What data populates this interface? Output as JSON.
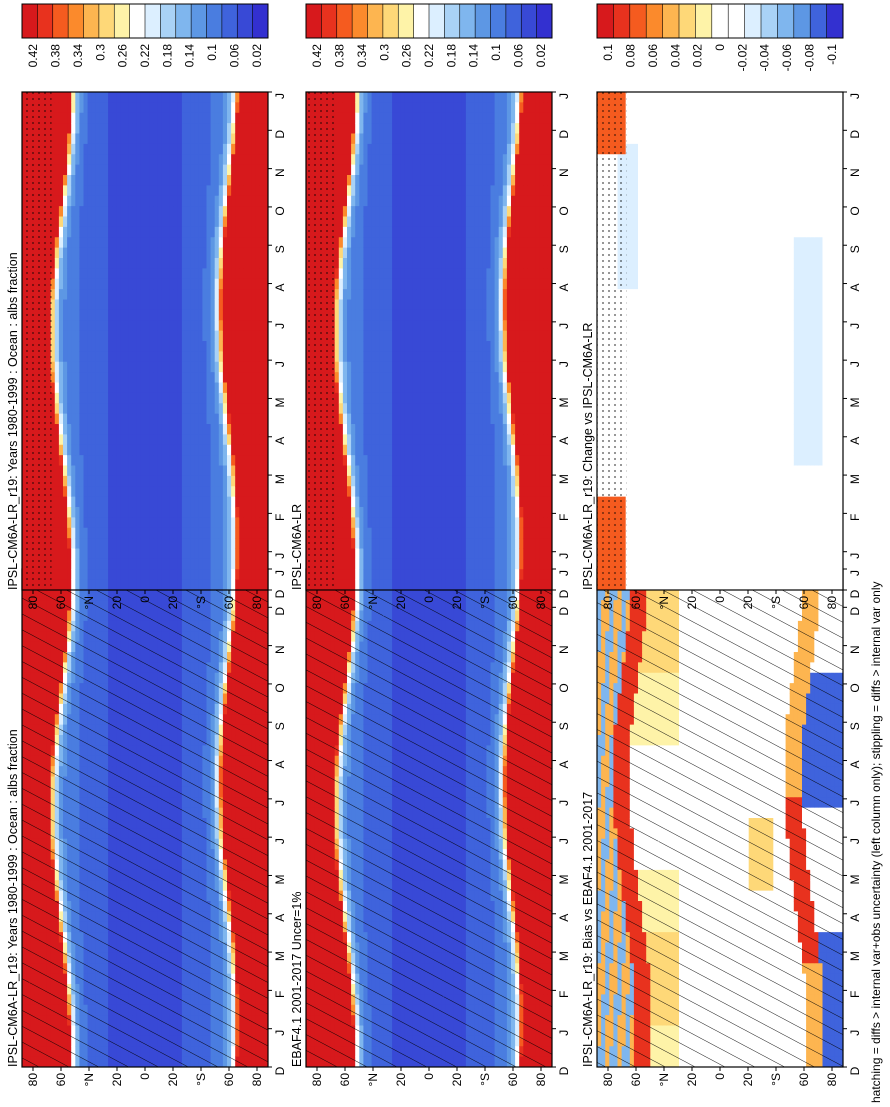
{
  "footnote": "hatching = diffs > internal var+obs uncertainty (left column only); stippling = diffs > internal var only",
  "month_ticks": [
    "D",
    "J",
    "F",
    "M",
    "A",
    "M",
    "J",
    "J",
    "A",
    "S",
    "O",
    "N",
    "D",
    "J"
  ],
  "lat_ticks": [
    "80",
    "60",
    "°N",
    "20",
    "0",
    "20",
    "°S",
    "60",
    "80"
  ],
  "colormaps": {
    "albedo": [
      "#d7191c",
      "#e8321e",
      "#f55b1f",
      "#fb8a2c",
      "#fdb550",
      "#fed878",
      "#fef3a8",
      "#ffffff",
      "#dcefff",
      "#a9d2f6",
      "#7fb6ee",
      "#5d97e4",
      "#4a7de0",
      "#3f63dc",
      "#3849d6",
      "#3330d0"
    ],
    "diff": [
      "#d7191c",
      "#e8321e",
      "#f55b1f",
      "#fb8a2c",
      "#fdb550",
      "#fed878",
      "#fef3a8",
      "#ffffff",
      "#ffffff",
      "#dcefff",
      "#a9d2f6",
      "#7fb6ee",
      "#5d97e4",
      "#3f63dc",
      "#3330d0"
    ]
  },
  "panels": [
    {
      "title": "IPSL-CM6A-LR_r19: Years 1980-1999 : Ocean : albs fraction",
      "kind": "albedo",
      "hatch": true,
      "stipple": false,
      "cbar_labels": [
        "0.42",
        "0.38",
        "0.34",
        "0.3",
        "0.26",
        "0.22",
        "0.18",
        "0.14",
        "0.1",
        "0.06",
        "0.02"
      ]
    },
    {
      "title": "IPSL-CM6A-LR_r19: Years 1980-1999 : Ocean : albs fraction",
      "kind": "albedo",
      "hatch": false,
      "stipple": true,
      "cbar_labels": [
        "0.42",
        "0.38",
        "0.34",
        "0.3",
        "0.26",
        "0.22",
        "0.18",
        "0.14",
        "0.1",
        "0.06",
        "0.02"
      ]
    },
    {
      "title": "EBAF4.1 2001-2017 Uncer=1%",
      "kind": "albedo",
      "hatch": true,
      "stipple": false,
      "cbar_labels": [
        "0.42",
        "0.38",
        "0.34",
        "0.3",
        "0.26",
        "0.22",
        "0.18",
        "0.14",
        "0.1",
        "0.06",
        "0.02"
      ]
    },
    {
      "title": "IPSL-CM6A-LR",
      "kind": "albedo",
      "hatch": false,
      "stipple": true,
      "cbar_labels": [
        "0.42",
        "0.38",
        "0.34",
        "0.3",
        "0.26",
        "0.22",
        "0.18",
        "0.14",
        "0.1",
        "0.06",
        "0.02"
      ]
    },
    {
      "title": "IPSL-CM6A-LR_r19: Bias vs EBAF4.1 2001-2017",
      "kind": "bias",
      "hatch": true,
      "stipple": false,
      "cbar_labels": [
        "0.1",
        "0.08",
        "0.06",
        "0.04",
        "0.02",
        "0",
        "-0.02",
        "-0.04",
        "-0.06",
        "-0.08",
        "-0.1"
      ]
    },
    {
      "title": "IPSL-CM6A-LR_r19: Change vs IPSL-CM6A-LR",
      "kind": "change",
      "hatch": false,
      "stipple": true,
      "cbar_labels": [
        "0.1",
        "0.08",
        "0.06",
        "0.04",
        "0.02",
        "0",
        "-0.02",
        "-0.04",
        "-0.06",
        "-0.08",
        "-0.1"
      ]
    }
  ],
  "chart_data": [
    {
      "type": "heatmap",
      "title": "IPSL-CM6A-LR_r19: Years 1980-1999 : Ocean : albs fraction",
      "x": [
        "D",
        "J",
        "F",
        "M",
        "A",
        "M",
        "J",
        "J",
        "A",
        "S",
        "O",
        "N",
        "D",
        "J"
      ],
      "y_ticks": [
        "80",
        "60",
        "°N",
        "20",
        "0",
        "20",
        "°S",
        "60",
        "80"
      ],
      "colorbar": [
        "0.42",
        "0.38",
        "0.34",
        "0.3",
        "0.26",
        "0.22",
        "0.18",
        "0.14",
        "0.1",
        "0.06",
        "0.02"
      ],
      "range": [
        0.02,
        0.42
      ],
      "tropics": 0.05,
      "midlat": 0.1,
      "polar": 0.42
    },
    {
      "type": "heatmap",
      "title": "IPSL-CM6A-LR_r19: Years 1980-1999 : Ocean : albs fraction",
      "x": [
        "D",
        "J",
        "F",
        "M",
        "A",
        "M",
        "J",
        "J",
        "A",
        "S",
        "O",
        "N",
        "D",
        "J"
      ],
      "y_ticks": [
        "80",
        "60",
        "°N",
        "20",
        "0",
        "20",
        "°S",
        "60",
        "80"
      ],
      "colorbar": [
        "0.42",
        "0.38",
        "0.34",
        "0.3",
        "0.26",
        "0.22",
        "0.18",
        "0.14",
        "0.1",
        "0.06",
        "0.02"
      ],
      "range": [
        0.02,
        0.42
      ],
      "tropics": 0.05,
      "midlat": 0.1,
      "polar": 0.42
    },
    {
      "type": "heatmap",
      "title": "EBAF4.1 2001-2017 Uncer=1%",
      "x": [
        "D",
        "J",
        "F",
        "M",
        "A",
        "M",
        "J",
        "J",
        "A",
        "S",
        "O",
        "N",
        "D",
        "J"
      ],
      "y_ticks": [
        "80",
        "60",
        "°N",
        "20",
        "0",
        "20",
        "°S",
        "60",
        "80"
      ],
      "colorbar": [
        "0.42",
        "0.38",
        "0.34",
        "0.3",
        "0.26",
        "0.22",
        "0.18",
        "0.14",
        "0.1",
        "0.06",
        "0.02"
      ],
      "range": [
        0.02,
        0.42
      ],
      "tropics": 0.05,
      "midlat": 0.09,
      "polar": 0.42
    },
    {
      "type": "heatmap",
      "title": "IPSL-CM6A-LR",
      "x": [
        "D",
        "J",
        "F",
        "M",
        "A",
        "M",
        "J",
        "J",
        "A",
        "S",
        "O",
        "N",
        "D",
        "J"
      ],
      "y_ticks": [
        "80",
        "60",
        "°N",
        "20",
        "0",
        "20",
        "°S",
        "60",
        "80"
      ],
      "colorbar": [
        "0.42",
        "0.38",
        "0.34",
        "0.3",
        "0.26",
        "0.22",
        "0.18",
        "0.14",
        "0.1",
        "0.06",
        "0.02"
      ],
      "range": [
        0.02,
        0.42
      ],
      "tropics": 0.05,
      "midlat": 0.1,
      "polar": 0.42
    },
    {
      "type": "heatmap",
      "title": "IPSL-CM6A-LR_r19: Bias vs EBAF4.1 2001-2017",
      "x": [
        "D",
        "J",
        "F",
        "M",
        "A",
        "M",
        "J",
        "J",
        "A",
        "S",
        "O",
        "N",
        "D",
        "J"
      ],
      "y_ticks": [
        "80",
        "60",
        "°N",
        "20",
        "0",
        "20",
        "°S",
        "60",
        "80"
      ],
      "colorbar": [
        "0.1",
        "0.08",
        "0.06",
        "0.04",
        "0.02",
        "0",
        "-0.02",
        "-0.04",
        "-0.06",
        "-0.08",
        "-0.1"
      ],
      "range": [
        -0.1,
        0.1
      ]
    },
    {
      "type": "heatmap",
      "title": "IPSL-CM6A-LR_r19: Change vs IPSL-CM6A-LR",
      "x": [
        "D",
        "J",
        "F",
        "M",
        "A",
        "M",
        "J",
        "J",
        "A",
        "S",
        "O",
        "N",
        "D",
        "J"
      ],
      "y_ticks": [
        "80",
        "60",
        "°N",
        "20",
        "0",
        "20",
        "°S",
        "60",
        "80"
      ],
      "colorbar": [
        "0.1",
        "0.08",
        "0.06",
        "0.04",
        "0.02",
        "0",
        "-0.02",
        "-0.04",
        "-0.06",
        "-0.08",
        "-0.1"
      ],
      "range": [
        -0.1,
        0.1
      ]
    }
  ]
}
